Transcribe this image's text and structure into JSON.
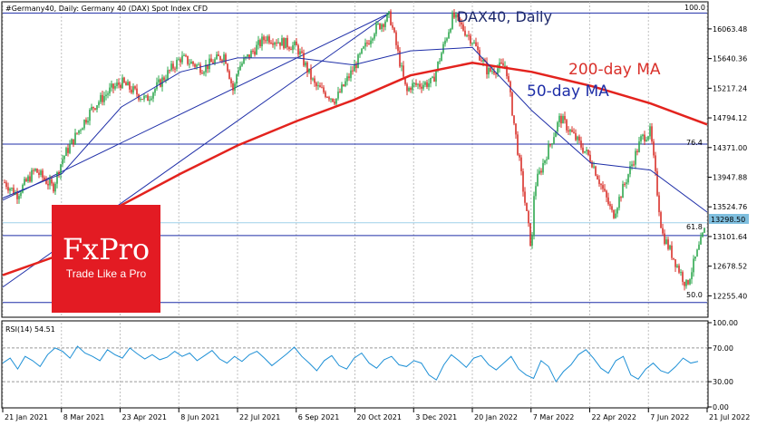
{
  "header": {
    "symbol_line": "#Germany40, Daily:  Germany 40 (DAX) Spot Index CFD",
    "overlay_title": "DAX40, Daily",
    "ma200_label": "200-day MA",
    "ma50_label": "50-day MA"
  },
  "fib": {
    "level_100": "100.0",
    "level_76": "76.4",
    "level_61": "61.8",
    "level_50": "50.0"
  },
  "price_badge": "13298.50",
  "rsi_label": "RSI(14) 54.51",
  "logo": {
    "brand": "FxPro",
    "tagline": "Trade Like a Pro"
  },
  "colors": {
    "candle_green": "#2fa84f",
    "candle_red": "#d9302a",
    "ma200": "#e3231e",
    "ma50": "#1f2fa8",
    "rsi_line": "#1e90d6",
    "fib_line": "#1f2fa8",
    "brand": "#e31b23"
  },
  "chart_data": [
    {
      "type": "candlestick",
      "title": "DAX40, Daily",
      "ylim": [
        11950,
        16450
      ],
      "y_ticks": [
        16063.48,
        15640.36,
        15217.24,
        14794.12,
        14371.0,
        13947.88,
        13524.76,
        13101.64,
        12678.52,
        12255.4
      ],
      "y_tick_labels": [
        "16063.48",
        "15640.36",
        "15217.24",
        "14794.12",
        "14371.00",
        "13947.88",
        "13524.76",
        "13101.64",
        "12678.52",
        "12255.40"
      ],
      "x_tick_labels": [
        "21 Jan 2021",
        "8 Mar 2021",
        "23 Apr 2021",
        "8 Jun 2021",
        "22 Jul 2021",
        "6 Sep 2021",
        "20 Oct 2021",
        "3 Dec 2021",
        "20 Jan 2022",
        "7 Mar 2022",
        "22 Apr 2022",
        "7 Jun 2022",
        "21 Jul 2022"
      ],
      "close_path": [
        [
          "2021-01-21",
          13900
        ],
        [
          "2021-02-01",
          13700
        ],
        [
          "2021-02-15",
          14050
        ],
        [
          "2021-03-01",
          13800
        ],
        [
          "2021-03-08",
          14200
        ],
        [
          "2021-03-22",
          14650
        ],
        [
          "2021-04-01",
          14950
        ],
        [
          "2021-04-15",
          15200
        ],
        [
          "2021-04-23",
          15300
        ],
        [
          "2021-05-12",
          15050
        ],
        [
          "2021-06-01",
          15500
        ],
        [
          "2021-06-08",
          15650
        ],
        [
          "2021-06-25",
          15500
        ],
        [
          "2021-07-12",
          15700
        ],
        [
          "2021-07-19",
          15150
        ],
        [
          "2021-07-22",
          15500
        ],
        [
          "2021-08-13",
          15950
        ],
        [
          "2021-09-06",
          15800
        ],
        [
          "2021-09-20",
          15250
        ],
        [
          "2021-10-06",
          15050
        ],
        [
          "2021-10-20",
          15500
        ],
        [
          "2021-11-05",
          16050
        ],
        [
          "2021-11-17",
          16250
        ],
        [
          "2021-11-30",
          15150
        ],
        [
          "2021-12-03",
          15250
        ],
        [
          "2021-12-20",
          15300
        ],
        [
          "2022-01-05",
          16250
        ],
        [
          "2022-01-20",
          15900
        ],
        [
          "2022-02-01",
          15450
        ],
        [
          "2022-02-15",
          15550
        ],
        [
          "2022-03-07",
          12900
        ],
        [
          "2022-03-09",
          13800
        ],
        [
          "2022-03-29",
          14800
        ],
        [
          "2022-04-22",
          14200
        ],
        [
          "2022-05-09",
          13400
        ],
        [
          "2022-05-31",
          14500
        ],
        [
          "2022-06-07",
          14600
        ],
        [
          "2022-06-16",
          13150
        ],
        [
          "2022-07-05",
          12400
        ],
        [
          "2022-07-21",
          13298.5
        ]
      ],
      "ma200": [
        [
          "2021-01-21",
          12550
        ],
        [
          "2021-03-08",
          12850
        ],
        [
          "2021-04-23",
          13550
        ],
        [
          "2021-06-08",
          14000
        ],
        [
          "2021-07-22",
          14400
        ],
        [
          "2021-09-06",
          14750
        ],
        [
          "2021-10-20",
          15050
        ],
        [
          "2021-12-03",
          15400
        ],
        [
          "2022-01-20",
          15580
        ],
        [
          "2022-03-07",
          15450
        ],
        [
          "2022-04-22",
          15250
        ],
        [
          "2022-06-07",
          15000
        ],
        [
          "2022-07-21",
          14700
        ]
      ],
      "ma50": [
        [
          "2021-01-21",
          13650
        ],
        [
          "2021-03-08",
          14000
        ],
        [
          "2021-04-23",
          14950
        ],
        [
          "2021-06-08",
          15450
        ],
        [
          "2021-07-22",
          15650
        ],
        [
          "2021-09-06",
          15650
        ],
        [
          "2021-10-20",
          15550
        ],
        [
          "2021-12-03",
          15750
        ],
        [
          "2022-01-20",
          15800
        ],
        [
          "2022-03-07",
          14900
        ],
        [
          "2022-04-22",
          14150
        ],
        [
          "2022-06-07",
          14050
        ],
        [
          "2022-07-21",
          13450
        ]
      ],
      "fib_levels": [
        {
          "label": "100.0",
          "value": 16290
        },
        {
          "label": "76.4",
          "value": 14420
        },
        {
          "label": "61.8",
          "value": 13115
        },
        {
          "label": "50.0",
          "value": 12160
        }
      ],
      "channel_lines": [
        [
          [
            "2021-01-21",
            12380
          ],
          [
            "2021-11-17",
            16290
          ]
        ],
        [
          [
            "2021-01-21",
            13620
          ],
          [
            "2021-11-17",
            16290
          ]
        ]
      ],
      "last_price": 13298.5
    },
    {
      "type": "line",
      "title": "RSI(14) 54.51",
      "ylim": [
        0,
        100
      ],
      "y_ticks": [
        100,
        70,
        30,
        0
      ],
      "y_tick_labels": [
        "100.00",
        "70.00",
        "30.00",
        "0.00"
      ],
      "levels": [
        70,
        30
      ],
      "series": [
        {
          "name": "RSI(14)",
          "values": [
            52,
            58,
            45,
            60,
            55,
            48,
            62,
            70,
            66,
            58,
            72,
            64,
            60,
            55,
            68,
            62,
            58,
            70,
            63,
            57,
            62,
            56,
            59,
            66,
            60,
            64,
            55,
            61,
            67,
            57,
            52,
            60,
            54,
            62,
            66,
            58,
            49,
            56,
            63,
            71,
            60,
            52,
            43,
            55,
            61,
            49,
            45,
            58,
            64,
            52,
            46,
            56,
            60,
            50,
            48,
            55,
            52,
            38,
            32,
            50,
            62,
            55,
            47,
            58,
            61,
            50,
            44,
            52,
            60,
            45,
            38,
            34,
            55,
            48,
            30,
            42,
            50,
            62,
            68,
            58,
            46,
            40,
            55,
            60,
            38,
            33,
            45,
            52,
            43,
            40,
            48,
            58,
            52,
            54
          ]
        }
      ]
    }
  ]
}
